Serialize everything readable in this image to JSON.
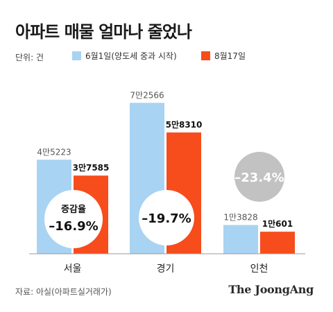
{
  "title": "아파트 매물 얼마나 줄었나",
  "unit": "단위: 건",
  "source": "자료: 아실(아파트실거래가)",
  "brand": "The JoongAng",
  "colors": {
    "before": "#a9d3f2",
    "after": "#f74c1c",
    "badge_alt": "#c2c2c2"
  },
  "chart_data": {
    "type": "bar",
    "categories": [
      "서울",
      "경기",
      "인천"
    ],
    "series": [
      {
        "name": "6월1일(양도세 중과 시작)",
        "values": [
          45223,
          72566,
          13828
        ],
        "labels": [
          "4만5223",
          "7만2566",
          "1만3828"
        ]
      },
      {
        "name": "8월17일",
        "values": [
          37585,
          58310,
          10601
        ],
        "labels": [
          "3만7585",
          "5만8310",
          "1만601"
        ]
      }
    ],
    "annotations": [
      {
        "category": "서울",
        "caption": "증감율",
        "text": "–16.9%"
      },
      {
        "category": "경기",
        "caption": "",
        "text": "–19.7%"
      },
      {
        "category": "인천",
        "caption": "",
        "text": "–23.4%"
      }
    ],
    "ylim": [
      0,
      80000
    ],
    "grid": false,
    "legend": "top"
  }
}
